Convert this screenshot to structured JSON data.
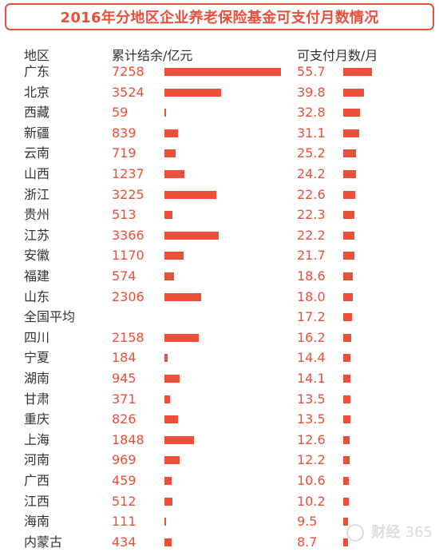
{
  "title": "2016年分地区企业养老保险基金可支付月数情况",
  "headers": {
    "region": "地区",
    "fund": "累计结余/亿元",
    "months": "可支付月数/月"
  },
  "colors": {
    "accent": "#e8503a",
    "text": "#333333"
  },
  "watermark": {
    "icon": "caijing-logo-icon",
    "text": "财经",
    "suffix": "365"
  },
  "chart_data": {
    "type": "table",
    "title": "2016年分地区企业养老保险基金可支付月数情况",
    "columns": [
      "地区",
      "累计结余/亿元",
      "可支付月数/月"
    ],
    "rows": [
      {
        "region": "广东",
        "fund": "7258",
        "months": "55.7"
      },
      {
        "region": "北京",
        "fund": "3524",
        "months": "39.8"
      },
      {
        "region": "西藏",
        "fund": "59",
        "months": "32.8"
      },
      {
        "region": "新疆",
        "fund": "839",
        "months": "31.1"
      },
      {
        "region": "云南",
        "fund": "719",
        "months": "25.2"
      },
      {
        "region": "山西",
        "fund": "1237",
        "months": "24.2"
      },
      {
        "region": "浙江",
        "fund": "3225",
        "months": "22.6"
      },
      {
        "region": "贵州",
        "fund": "513",
        "months": "22.3"
      },
      {
        "region": "江苏",
        "fund": "3366",
        "months": "22.2"
      },
      {
        "region": "安徽",
        "fund": "1170",
        "months": "21.7"
      },
      {
        "region": "福建",
        "fund": "574",
        "months": "18.6"
      },
      {
        "region": "山东",
        "fund": "2306",
        "months": "18.0"
      },
      {
        "region": "全国平均",
        "fund": "",
        "months": "17.2"
      },
      {
        "region": "四川",
        "fund": "2158",
        "months": "16.2"
      },
      {
        "region": "宁夏",
        "fund": "184",
        "months": "14.4"
      },
      {
        "region": "湖南",
        "fund": "945",
        "months": "14.1"
      },
      {
        "region": "甘肃",
        "fund": "371",
        "months": "13.5"
      },
      {
        "region": "重庆",
        "fund": "826",
        "months": "13.5"
      },
      {
        "region": "上海",
        "fund": "1848",
        "months": "12.6"
      },
      {
        "region": "河南",
        "fund": "969",
        "months": "12.2"
      },
      {
        "region": "广西",
        "fund": "459",
        "months": "10.6"
      },
      {
        "region": "江西",
        "fund": "512",
        "months": "10.2"
      },
      {
        "region": "海南",
        "fund": "111",
        "months": "9.5"
      },
      {
        "region": "内蒙古",
        "fund": "434",
        "months": "8.7"
      }
    ],
    "fund_max": 7258,
    "months_max": 55.7
  }
}
